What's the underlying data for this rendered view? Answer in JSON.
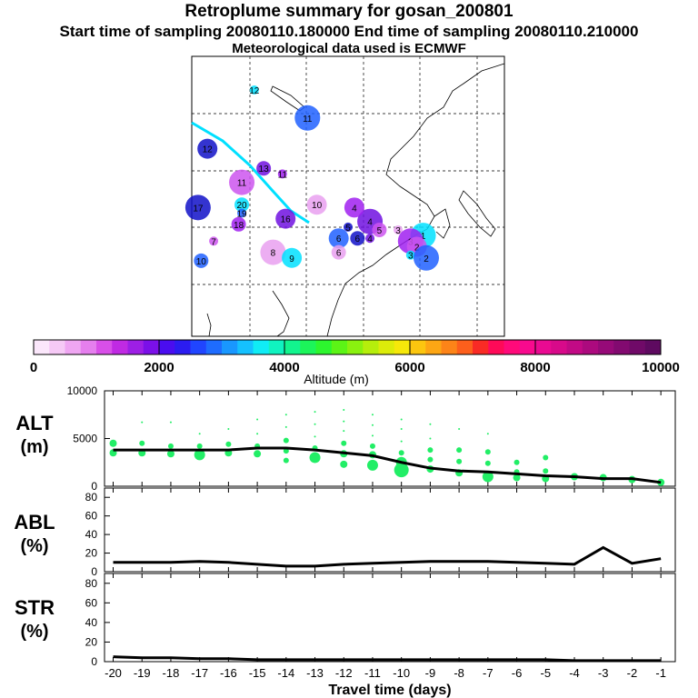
{
  "header": {
    "title": "Retroplume summary for gosan_200801",
    "sampling": "Start time of sampling 20080110.180000     End time of sampling 20080110.210000",
    "met": "Meteorological data used is ECMWF"
  },
  "map": {
    "plume_labels": [
      {
        "t": "12",
        "lon": 0.2,
        "lat": 0.12
      },
      {
        "t": "11",
        "lon": 0.37,
        "lat": 0.22
      },
      {
        "t": "12",
        "lon": 0.05,
        "lat": 0.33
      },
      {
        "t": "13",
        "lon": 0.23,
        "lat": 0.4
      },
      {
        "t": "11",
        "lon": 0.29,
        "lat": 0.42
      },
      {
        "t": "11",
        "lon": 0.16,
        "lat": 0.45
      },
      {
        "t": "10",
        "lon": 0.4,
        "lat": 0.53
      },
      {
        "t": "20",
        "lon": 0.16,
        "lat": 0.53
      },
      {
        "t": "19",
        "lon": 0.16,
        "lat": 0.56
      },
      {
        "t": "17",
        "lon": 0.02,
        "lat": 0.54
      },
      {
        "t": "16",
        "lon": 0.3,
        "lat": 0.58
      },
      {
        "t": "18",
        "lon": 0.15,
        "lat": 0.6
      },
      {
        "t": "7",
        "lon": 0.07,
        "lat": 0.66
      },
      {
        "t": "8",
        "lon": 0.26,
        "lat": 0.7
      },
      {
        "t": "9",
        "lon": 0.32,
        "lat": 0.72
      },
      {
        "t": "10",
        "lon": 0.03,
        "lat": 0.73
      },
      {
        "t": "5",
        "lon": 0.5,
        "lat": 0.61
      },
      {
        "t": "4",
        "lon": 0.57,
        "lat": 0.59
      },
      {
        "t": "4",
        "lon": 0.52,
        "lat": 0.54
      },
      {
        "t": "5",
        "lon": 0.6,
        "lat": 0.62
      },
      {
        "t": "3",
        "lon": 0.66,
        "lat": 0.62
      },
      {
        "t": "1",
        "lon": 0.74,
        "lat": 0.64
      },
      {
        "t": "6",
        "lon": 0.47,
        "lat": 0.65
      },
      {
        "t": "6",
        "lon": 0.53,
        "lat": 0.65
      },
      {
        "t": "4",
        "lon": 0.57,
        "lat": 0.65
      },
      {
        "t": "3",
        "lon": 0.7,
        "lat": 0.66
      },
      {
        "t": "2",
        "lon": 0.72,
        "lat": 0.68
      },
      {
        "t": "6",
        "lon": 0.47,
        "lat": 0.7
      },
      {
        "t": "3",
        "lon": 0.7,
        "lat": 0.71
      },
      {
        "t": "2",
        "lon": 0.75,
        "lat": 0.72
      }
    ]
  },
  "colorbar": {
    "ticks": [
      "0",
      "2000",
      "4000",
      "6000",
      "8000",
      "10000"
    ],
    "label": "Altitude (m)"
  },
  "chart_data": [
    {
      "type": "line",
      "panel": "ALT",
      "ylabel_line1": "ALT",
      "ylabel_line2": "(m)",
      "ylim": [
        0,
        10000
      ],
      "yticks": [
        "0",
        "5000",
        "10000"
      ],
      "x": [
        -20,
        -19,
        -18,
        -17,
        -16,
        -15,
        -14,
        -13,
        -12,
        -11,
        -10,
        -9,
        -8,
        -7,
        -6,
        -5,
        -4,
        -3,
        -2,
        -1
      ],
      "series": [
        {
          "name": "mean",
          "values": [
            3800,
            3800,
            3800,
            3800,
            3800,
            4000,
            4000,
            3800,
            3500,
            3200,
            2500,
            1900,
            1600,
            1500,
            1300,
            1100,
            1000,
            800,
            800,
            400
          ]
        }
      ],
      "scatter": [
        {
          "x": -20,
          "y": 4500,
          "s": 2
        },
        {
          "x": -20,
          "y": 3500,
          "s": 2
        },
        {
          "x": -19,
          "y": 6700,
          "s": 0
        },
        {
          "x": -19,
          "y": 4500,
          "s": 1
        },
        {
          "x": -19,
          "y": 3500,
          "s": 2
        },
        {
          "x": -18,
          "y": 6700,
          "s": 0
        },
        {
          "x": -18,
          "y": 4200,
          "s": 1
        },
        {
          "x": -18,
          "y": 3400,
          "s": 2
        },
        {
          "x": -17,
          "y": 5500,
          "s": 0
        },
        {
          "x": -17,
          "y": 4200,
          "s": 1
        },
        {
          "x": -17,
          "y": 3300,
          "s": 3
        },
        {
          "x": -16,
          "y": 6000,
          "s": 0
        },
        {
          "x": -16,
          "y": 4400,
          "s": 1
        },
        {
          "x": -16,
          "y": 3500,
          "s": 2
        },
        {
          "x": -15,
          "y": 7000,
          "s": 0
        },
        {
          "x": -15,
          "y": 5500,
          "s": 0
        },
        {
          "x": -15,
          "y": 4200,
          "s": 1
        },
        {
          "x": -15,
          "y": 3400,
          "s": 2
        },
        {
          "x": -14,
          "y": 7500,
          "s": 0
        },
        {
          "x": -14,
          "y": 6200,
          "s": 0
        },
        {
          "x": -14,
          "y": 4800,
          "s": 1
        },
        {
          "x": -14,
          "y": 3700,
          "s": 1
        },
        {
          "x": -14,
          "y": 2700,
          "s": 1
        },
        {
          "x": -13,
          "y": 7800,
          "s": 0
        },
        {
          "x": -13,
          "y": 6500,
          "s": 0
        },
        {
          "x": -13,
          "y": 5200,
          "s": 0
        },
        {
          "x": -13,
          "y": 4000,
          "s": 1
        },
        {
          "x": -13,
          "y": 3000,
          "s": 3
        },
        {
          "x": -12,
          "y": 8000,
          "s": 0
        },
        {
          "x": -12,
          "y": 6800,
          "s": 0
        },
        {
          "x": -12,
          "y": 5800,
          "s": 0
        },
        {
          "x": -12,
          "y": 4500,
          "s": 1
        },
        {
          "x": -12,
          "y": 3400,
          "s": 2
        },
        {
          "x": -12,
          "y": 2300,
          "s": 2
        },
        {
          "x": -11,
          "y": 7500,
          "s": 0
        },
        {
          "x": -11,
          "y": 6400,
          "s": 0
        },
        {
          "x": -11,
          "y": 5300,
          "s": 0
        },
        {
          "x": -11,
          "y": 4200,
          "s": 1
        },
        {
          "x": -11,
          "y": 3300,
          "s": 2
        },
        {
          "x": -11,
          "y": 2200,
          "s": 3
        },
        {
          "x": -10,
          "y": 7000,
          "s": 0
        },
        {
          "x": -10,
          "y": 6000,
          "s": 0
        },
        {
          "x": -10,
          "y": 4700,
          "s": 0
        },
        {
          "x": -10,
          "y": 3500,
          "s": 1
        },
        {
          "x": -10,
          "y": 2500,
          "s": 3
        },
        {
          "x": -10,
          "y": 1700,
          "s": 4
        },
        {
          "x": -9,
          "y": 6500,
          "s": 0
        },
        {
          "x": -9,
          "y": 5000,
          "s": 0
        },
        {
          "x": -9,
          "y": 3800,
          "s": 1
        },
        {
          "x": -9,
          "y": 2800,
          "s": 1
        },
        {
          "x": -9,
          "y": 1800,
          "s": 2
        },
        {
          "x": -8,
          "y": 6000,
          "s": 0
        },
        {
          "x": -8,
          "y": 3800,
          "s": 1
        },
        {
          "x": -8,
          "y": 2600,
          "s": 1
        },
        {
          "x": -8,
          "y": 1400,
          "s": 2
        },
        {
          "x": -7,
          "y": 5500,
          "s": 0
        },
        {
          "x": -7,
          "y": 3600,
          "s": 1
        },
        {
          "x": -7,
          "y": 2400,
          "s": 1
        },
        {
          "x": -7,
          "y": 1000,
          "s": 3
        },
        {
          "x": -6,
          "y": 2500,
          "s": 1
        },
        {
          "x": -6,
          "y": 1500,
          "s": 1
        },
        {
          "x": -6,
          "y": 900,
          "s": 2
        },
        {
          "x": -5,
          "y": 3000,
          "s": 1
        },
        {
          "x": -5,
          "y": 1600,
          "s": 1
        },
        {
          "x": -5,
          "y": 800,
          "s": 2
        },
        {
          "x": -4,
          "y": 1000,
          "s": 2
        },
        {
          "x": -3,
          "y": 900,
          "s": 2
        },
        {
          "x": -2,
          "y": 700,
          "s": 2
        },
        {
          "x": -1,
          "y": 400,
          "s": 2
        }
      ]
    },
    {
      "type": "line",
      "panel": "ABL",
      "ylabel_line1": "ABL",
      "ylabel_line2": "(%)",
      "ylim": [
        0,
        90
      ],
      "yticks": [
        "0",
        "20",
        "40",
        "60",
        "80"
      ],
      "x": [
        -20,
        -19,
        -18,
        -17,
        -16,
        -15,
        -14,
        -13,
        -12,
        -11,
        -10,
        -9,
        -8,
        -7,
        -6,
        -5,
        -4,
        -3,
        -2,
        -1
      ],
      "series": [
        {
          "name": "abl",
          "values": [
            10,
            10,
            10,
            11,
            10,
            8,
            6,
            6,
            8,
            9,
            10,
            11,
            11,
            11,
            10,
            9,
            8,
            26,
            9,
            14
          ]
        }
      ]
    },
    {
      "type": "line",
      "panel": "STR",
      "ylabel_line1": "STR",
      "ylabel_line2": "(%)",
      "ylim": [
        0,
        90
      ],
      "yticks": [
        "0",
        "20",
        "40",
        "60",
        "80"
      ],
      "x": [
        -20,
        -19,
        -18,
        -17,
        -16,
        -15,
        -14,
        -13,
        -12,
        -11,
        -10,
        -9,
        -8,
        -7,
        -6,
        -5,
        -4,
        -3,
        -2,
        -1
      ],
      "xticks": [
        "-20",
        "-19",
        "-18",
        "-17",
        "-16",
        "-15",
        "-14",
        "-13",
        "-12",
        "-11",
        "-10",
        "-9",
        "-8",
        "-7",
        "-6",
        "-5",
        "-4",
        "-3",
        "-2",
        "-1"
      ],
      "xlabel": "Travel time (days)",
      "series": [
        {
          "name": "str",
          "values": [
            5,
            4,
            4,
            3,
            3,
            2,
            2,
            2,
            2,
            2,
            2,
            2,
            2,
            2,
            2,
            2,
            1,
            1,
            1,
            1
          ]
        }
      ]
    }
  ]
}
